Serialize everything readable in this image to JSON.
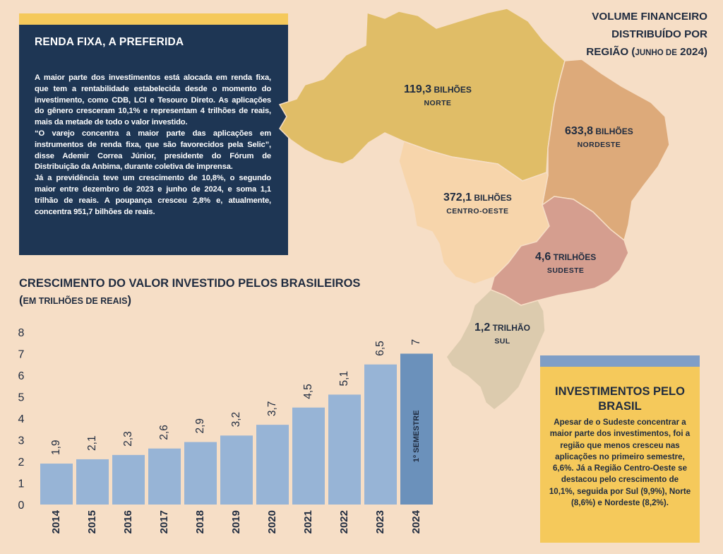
{
  "info_box": {
    "title": "RENDA FIXA, A PREFERIDA",
    "body": "A maior parte dos investimentos está alocada em renda fixa, que tem a rentabilidade estabelecida desde o momento do investimento, como CDB, LCI e Tesouro Direto. As aplicações do gênero cresceram 10,1% e representam 4 trilhões de reais, mais da metade de todo o valor investido.\n“O varejo concentra a maior parte das aplicações em instrumentos de renda fixa, que são favorecidos pela Selic”, disse Ademir Correa Júnior, presidente do Fórum de Distribuição da Anbima, durante coletiva de imprensa.\nJá a previdência teve um crescimento de 10,8%, o segundo maior entre dezembro de 2023 e junho de 2024, e soma 1,1 trilhão de reais. A poupança cresceu 2,8% e, atualmente, concentra 951,7 bilhões de reais."
  },
  "map": {
    "title_line1": "VOLUME FINANCEIRO",
    "title_line2": "DISTRIBUÍDO POR",
    "title_line3_main": "REGIÃO (",
    "title_line3_small": "JUNHO DE",
    "title_line3_year": " 2024)",
    "regions": [
      {
        "name": "NORTE",
        "amount": "119,3",
        "unit": " BILHÕES",
        "color": "#e0bd67"
      },
      {
        "name": "NORDESTE",
        "amount": "633,8",
        "unit": " BILHÕES",
        "color": "#ddaa7a"
      },
      {
        "name": "CENTRO-OESTE",
        "amount": "372,1",
        "unit": " BILHÕES",
        "color": "#f7d5ab"
      },
      {
        "name": "SUDESTE",
        "amount": "4,6",
        "unit": " TRILHÕES",
        "color": "#d59e8f"
      },
      {
        "name": "SUL",
        "amount": "1,2",
        "unit": " TRILHÃO",
        "color": "#dccbae"
      }
    ]
  },
  "chart_data": {
    "type": "bar",
    "title": "CRESCIMENTO DO VALOR INVESTIDO PELOS BRASILEIROS",
    "subtitle_main": "(",
    "subtitle_small": "EM TRILHÕES DE REAIS",
    "subtitle_end": ")",
    "categories": [
      "2014",
      "2015",
      "2016",
      "2017",
      "2018",
      "2019",
      "2020",
      "2021",
      "2022",
      "2023",
      "2024"
    ],
    "values": [
      1.9,
      2.1,
      2.3,
      2.6,
      2.9,
      3.2,
      3.7,
      4.5,
      5.1,
      6.5,
      7
    ],
    "value_labels": [
      "1,9",
      "2,1",
      "2,3",
      "2,6",
      "2,9",
      "3,2",
      "3,7",
      "4,5",
      "5,1",
      "6,5",
      "7"
    ],
    "y_ticks": [
      "0",
      "1",
      "2",
      "3",
      "4",
      "5",
      "6",
      "7",
      "8"
    ],
    "ylim": [
      0,
      8
    ],
    "highlight_label": "1º SEMESTRE",
    "colors": {
      "bar": "#97b4d6",
      "highlight": "#6b91bb"
    }
  },
  "side_box": {
    "title": "INVESTIMENTOS PELO BRASIL",
    "body": "Apesar de o Sudeste concentrar a maior parte dos investimentos, foi a região que menos cresceu nas aplicações no primeiro semestre, 6,6%. Já a Região Centro-Oeste se destacou pelo crescimento de 10,1%, seguida por Sul (9,9%), Norte (8,6%) e Nordeste (8,2%)."
  }
}
